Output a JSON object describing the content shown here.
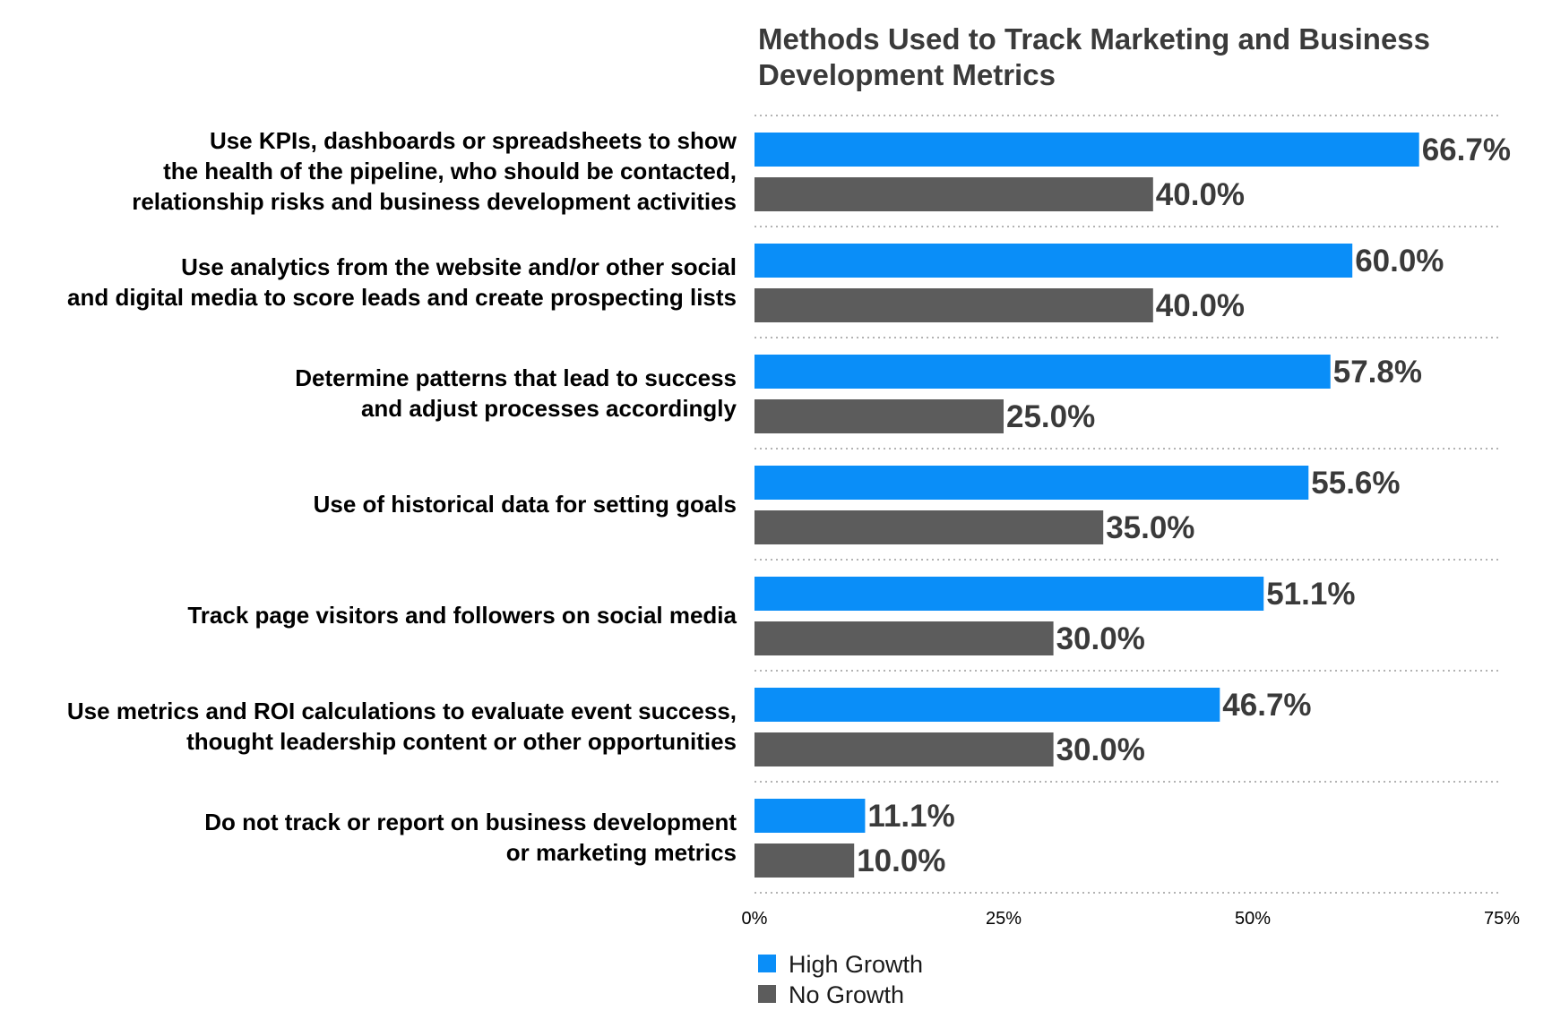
{
  "chart_data": {
    "type": "bar",
    "orientation": "horizontal",
    "title": "Methods Used to Track Marketing and Business Development Metrics",
    "title_lines": [
      "Methods Used to Track Marketing and Business",
      "Development Metrics"
    ],
    "categories": [
      "Use KPIs, dashboards or spreadsheets to show the health of the pipeline, who should be contacted, relationship risks and business development activities",
      "Use analytics from the website and/or other social and digital media to score leads and create prospecting lists",
      "Determine patterns that lead to success and adjust processes accordingly",
      "Use of historical data for setting goals",
      "Track page visitors and followers on social media",
      "Use metrics and ROI calculations to evaluate event success, thought leadership content or other opportunities",
      "Do not track or report on business development or marketing metrics"
    ],
    "category_lines": [
      [
        "Use KPIs, dashboards or spreadsheets to show",
        "the health of the pipeline,  who should be contacted,",
        "relationship risks and business development activities"
      ],
      [
        "Use analytics from the website and/or other social",
        "and digital media to score leads and create prospecting lists"
      ],
      [
        "Determine patterns that lead to success",
        "and adjust processes accordingly"
      ],
      [
        "Use of historical data for setting goals"
      ],
      [
        "Track page visitors and followers on social media"
      ],
      [
        "Use metrics and ROI calculations to evaluate event success,",
        "thought leadership content or other opportunities"
      ],
      [
        "Do not track or report on business development",
        "or marketing metrics"
      ]
    ],
    "series": [
      {
        "name": "High Growth",
        "color": "#0a8ef8",
        "values": [
          66.7,
          60.0,
          57.8,
          55.6,
          51.1,
          46.7,
          11.1
        ],
        "labels": [
          "66.7%",
          "60.0%",
          "57.8%",
          "55.6%",
          "51.1%",
          "46.7%",
          "11.1%"
        ]
      },
      {
        "name": "No Growth",
        "color": "#5c5c5c",
        "values": [
          40.0,
          40.0,
          25.0,
          35.0,
          30.0,
          30.0,
          10.0
        ],
        "labels": [
          "40.0%",
          "40.0%",
          "25.0%",
          "35.0%",
          "30.0%",
          "30.0%",
          "10.0%"
        ]
      }
    ],
    "xlim": [
      0,
      75
    ],
    "xticks": [
      0,
      25,
      50,
      75
    ],
    "xtick_labels": [
      "0%",
      "25%",
      "50%",
      "75%"
    ],
    "grid": true,
    "legend_position": "bottom-left"
  }
}
